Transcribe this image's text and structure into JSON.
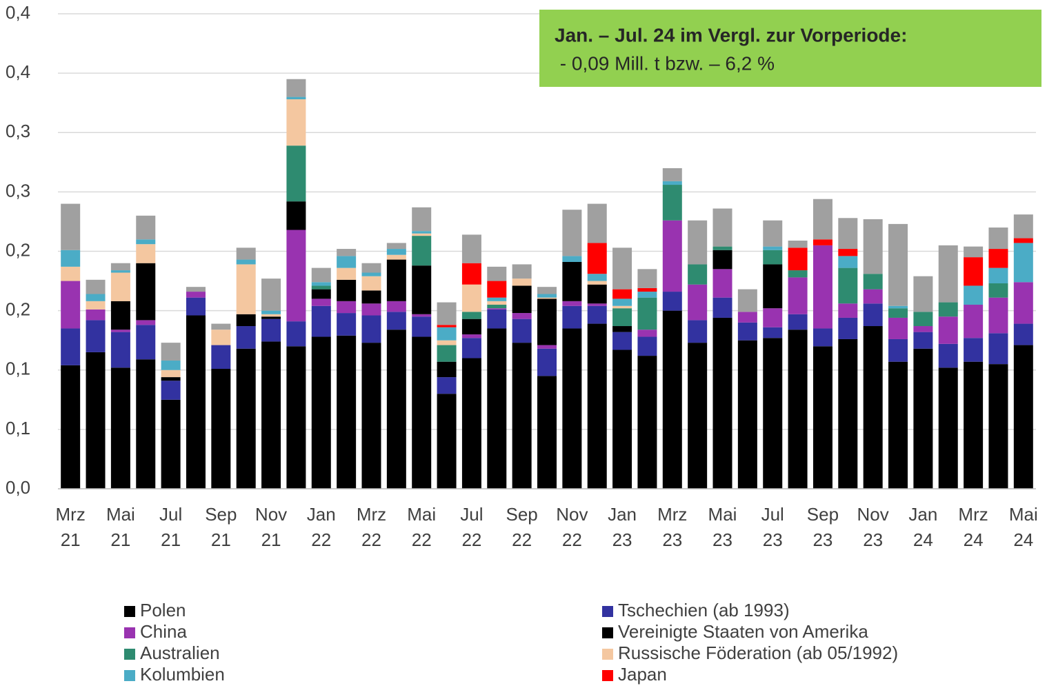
{
  "chart_data": {
    "type": "stacked-bar",
    "annotation": {
      "title": "Jan. – Jul. 24 im Vergl. zur Vorperiode:",
      "text": " - 0,09 Mill. t bzw. – 6,2 %",
      "color": "#92d050"
    },
    "categories": [
      "Mrz 21",
      null,
      "Mai 21",
      null,
      "Jul 21",
      null,
      "Sep 21",
      null,
      "Nov 21",
      null,
      "Jan 22",
      null,
      "Mrz 22",
      null,
      "Mai 22",
      null,
      "Jul 22",
      null,
      "Sep 22",
      null,
      "Nov 22",
      null,
      "Jan 23",
      null,
      "Mrz 23",
      null,
      "Mai 23",
      null,
      "Jul 23",
      null,
      "Sep 23",
      null,
      "Nov 23",
      null,
      "Jan 24",
      null,
      "Mrz 24",
      null,
      "Mai 24"
    ],
    "ylim": [
      0,
      0.4
    ],
    "yticks": [
      {
        "value": 0,
        "label": "0,0"
      },
      {
        "value": 0.05,
        "label": "0,1"
      },
      {
        "value": 0.1,
        "label": "0,1"
      },
      {
        "value": 0.15,
        "label": "0,2"
      },
      {
        "value": 0.2,
        "label": "0,2"
      },
      {
        "value": 0.25,
        "label": "0,3"
      },
      {
        "value": 0.3,
        "label": "0,3"
      },
      {
        "value": 0.35,
        "label": "0,4"
      },
      {
        "value": 0.4,
        "label": "0,4"
      }
    ],
    "grid": true,
    "series": [
      {
        "name": "Polen",
        "color": "#000000",
        "values": [
          0.104,
          0.115,
          0.102,
          0.109,
          0.075,
          0.146,
          0.101,
          0.118,
          0.124,
          0.12,
          0.128,
          0.129,
          0.123,
          0.134,
          0.128,
          0.08,
          0.11,
          0.135,
          0.123,
          0.095,
          0.135,
          0.139,
          0.117,
          0.112,
          0.15,
          0.123,
          0.144,
          0.125,
          0.127,
          0.134,
          0.12,
          0.126,
          0.137,
          0.107,
          0.118,
          0.102,
          0.107,
          0.105,
          0.121
        ]
      },
      {
        "name": "Tschechien (ab 1993)",
        "color": "#3232a0",
        "values": [
          0.031,
          0.027,
          0.03,
          0.029,
          0.016,
          0.015,
          0.02,
          0.019,
          0.019,
          0.021,
          0.026,
          0.019,
          0.023,
          0.015,
          0.017,
          0.014,
          0.017,
          0.016,
          0.02,
          0.023,
          0.019,
          0.015,
          0.015,
          0.016,
          0.016,
          0.019,
          0.017,
          0.015,
          0.009,
          0.013,
          0.015,
          0.018,
          0.019,
          0.019,
          0.014,
          0.02,
          0.02,
          0.026,
          0.018
        ]
      },
      {
        "name": "China",
        "color": "#9933b0",
        "values": [
          0.04,
          0.009,
          0.002,
          0.004,
          0,
          0.005,
          0,
          0,
          0,
          0.077,
          0.006,
          0.01,
          0.01,
          0.009,
          0.002,
          0,
          0.003,
          0.001,
          0.005,
          0.003,
          0.004,
          0.002,
          0,
          0.006,
          0.06,
          0.03,
          0.024,
          0.009,
          0.016,
          0.031,
          0.07,
          0.012,
          0.012,
          0.018,
          0.005,
          0.023,
          0.028,
          0.03,
          0.035
        ]
      },
      {
        "name": "Vereinigte Staaten von Amerika",
        "color": "#000000",
        "values": [
          0,
          0,
          0.024,
          0.048,
          0.003,
          0,
          0,
          0.01,
          0.002,
          0.024,
          0.008,
          0.018,
          0.011,
          0.035,
          0.041,
          0.013,
          0.013,
          0,
          0.023,
          0.039,
          0.033,
          0.016,
          0.005,
          0,
          0,
          0,
          0.016,
          0,
          0.037,
          0,
          0,
          0,
          0,
          0,
          0,
          0,
          0,
          0,
          0
        ]
      },
      {
        "name": "Australien",
        "color": "#2e8b70",
        "values": [
          0,
          0,
          0,
          0,
          0,
          0,
          0,
          0,
          0,
          0.047,
          0.003,
          0,
          0,
          0,
          0.025,
          0.014,
          0.006,
          0.003,
          0,
          0,
          0,
          0,
          0.015,
          0.027,
          0.03,
          0.017,
          0.003,
          0,
          0.012,
          0.006,
          0,
          0.03,
          0.013,
          0.008,
          0.012,
          0.012,
          0,
          0.012,
          0
        ]
      },
      {
        "name": "Russische Föderation (ab 05/1992)",
        "color": "#f4c7a0",
        "values": [
          0.012,
          0.007,
          0.024,
          0.016,
          0.006,
          0,
          0.013,
          0.042,
          0.002,
          0.039,
          0,
          0.01,
          0.012,
          0.004,
          0.002,
          0.004,
          0.023,
          0.003,
          0.006,
          0.001,
          0,
          0.003,
          0.002,
          0,
          0,
          0,
          0,
          0,
          0,
          0,
          0,
          0,
          0,
          0,
          0,
          0,
          0,
          0,
          0
        ]
      },
      {
        "name": "Kolumbien",
        "color": "#4bacc6",
        "values": [
          0.014,
          0.006,
          0.002,
          0.004,
          0.008,
          0,
          0,
          0.004,
          0.003,
          0.002,
          0.003,
          0.01,
          0.003,
          0.005,
          0.002,
          0.011,
          0,
          0.003,
          0,
          0.003,
          0.005,
          0.006,
          0.006,
          0.005,
          0.003,
          0,
          0,
          0,
          0.003,
          0,
          0,
          0.01,
          0,
          0.002,
          0,
          0,
          0.016,
          0.013,
          0.033
        ]
      },
      {
        "name": "Japan",
        "color": "#ff0000",
        "values": [
          0,
          0,
          0,
          0,
          0,
          0,
          0,
          0,
          0,
          0,
          0,
          0,
          0,
          0,
          0,
          0.002,
          0.018,
          0.014,
          0,
          0,
          0,
          0.026,
          0.008,
          0.003,
          0,
          0,
          0,
          0,
          0,
          0.019,
          0.005,
          0.006,
          0,
          0,
          0,
          0,
          0.024,
          0.016,
          0.004
        ]
      },
      {
        "color": "#a0a0a0",
        "values": [
          0.039,
          0.012,
          0.006,
          0.02,
          0.015,
          0.004,
          0.005,
          0.01,
          0.027,
          0.015,
          0.012,
          0.006,
          0.008,
          0.005,
          0.02,
          0.019,
          0.024,
          0.012,
          0.012,
          0.006,
          0.039,
          0.033,
          0.035,
          0.016,
          0.011,
          0.037,
          0.032,
          0.019,
          0.022,
          0.006,
          0.034,
          0.026,
          0.046,
          0.069,
          0.03,
          0.048,
          0.009,
          0.018,
          0.02
        ]
      }
    ]
  }
}
